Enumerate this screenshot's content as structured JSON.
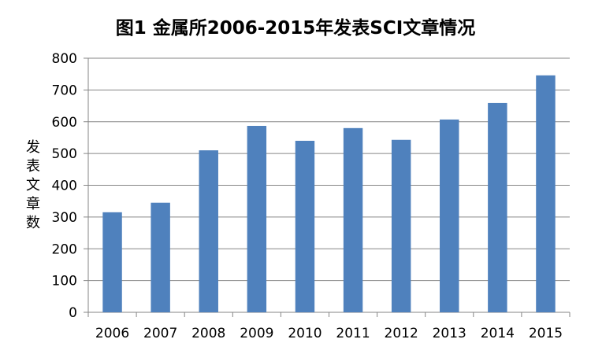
{
  "chart_data": {
    "type": "bar",
    "title": "图1 金属所2006-2015年发表SCI文章情况",
    "xlabel": "",
    "ylabel": "发表文章数",
    "categories": [
      "2006",
      "2007",
      "2008",
      "2009",
      "2010",
      "2011",
      "2012",
      "2013",
      "2014",
      "2015"
    ],
    "values": [
      315,
      345,
      510,
      587,
      540,
      580,
      543,
      607,
      659,
      746
    ],
    "ylim": [
      0,
      800
    ],
    "yticks": [
      "0",
      "100",
      "200",
      "300",
      "400",
      "500",
      "600",
      "700",
      "800"
    ],
    "grid": true,
    "legend": "none",
    "bar_color": "#4F81BD",
    "grid_color": "#868686",
    "axis_color": "#868686"
  }
}
